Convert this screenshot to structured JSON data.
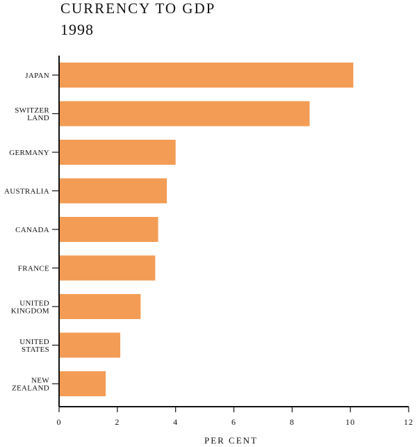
{
  "chart_data": {
    "type": "bar",
    "orientation": "horizontal",
    "title": "CURRENCY TO GDP",
    "subtitle": "1998",
    "xlabel": "PER CENT",
    "ylabel": "",
    "categories": [
      [
        "JAPAN"
      ],
      [
        "SWITZER",
        "LAND"
      ],
      [
        "GERMANY"
      ],
      [
        "AUSTRALIA"
      ],
      [
        "CANADA"
      ],
      [
        "FRANCE"
      ],
      [
        "UNITED",
        "KINGDOM"
      ],
      [
        "UNITED",
        "STATES"
      ],
      [
        "NEW",
        "ZEALAND"
      ]
    ],
    "values": [
      10.1,
      8.6,
      4.0,
      3.7,
      3.4,
      3.3,
      2.8,
      2.1,
      1.6
    ],
    "xlim": [
      0,
      12
    ],
    "xticks": [
      0,
      2,
      4,
      6,
      8,
      10,
      12
    ],
    "xtick_labels": [
      "0",
      "2",
      "4",
      "6",
      "8",
      "10",
      "12"
    ],
    "grid": false,
    "colors": {
      "bar": "#f39c55",
      "axis": "#111111"
    }
  }
}
